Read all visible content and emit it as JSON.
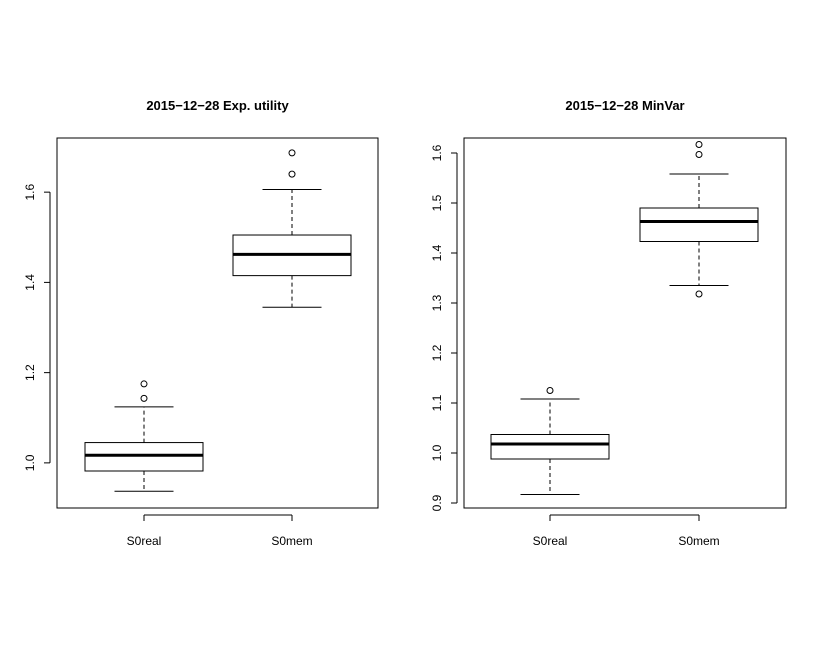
{
  "chart_data": [
    {
      "type": "boxplot",
      "title": "2015−12−28 Exp. utility",
      "xlabel": "",
      "ylabel": "",
      "ylim": [
        0.9,
        1.72
      ],
      "yticks": [
        1.0,
        1.2,
        1.4,
        1.6
      ],
      "ytick_labels": [
        "1.0",
        "1.2",
        "1.4",
        "1.6"
      ],
      "grid": false,
      "categories": [
        "S0real",
        "S0mem"
      ],
      "boxes": [
        {
          "category": "S0real",
          "whisker_low": 0.937,
          "q1": 0.982,
          "median": 1.017,
          "q3": 1.045,
          "whisker_high": 1.124,
          "outliers": [
            1.143,
            1.175
          ]
        },
        {
          "category": "S0mem",
          "whisker_low": 1.345,
          "q1": 1.415,
          "median": 1.462,
          "q3": 1.505,
          "whisker_high": 1.606,
          "outliers": [
            1.64,
            1.687
          ]
        }
      ]
    },
    {
      "type": "boxplot",
      "title": "2015−12−28 MinVar",
      "xlabel": "",
      "ylabel": "",
      "ylim": [
        0.89,
        1.63
      ],
      "yticks": [
        0.9,
        1.0,
        1.1,
        1.2,
        1.3,
        1.4,
        1.5,
        1.6
      ],
      "ytick_labels": [
        "0.9",
        "1.0",
        "1.1",
        "1.2",
        "1.3",
        "1.4",
        "1.5",
        "1.6"
      ],
      "grid": false,
      "categories": [
        "S0real",
        "S0mem"
      ],
      "boxes": [
        {
          "category": "S0real",
          "whisker_low": 0.917,
          "q1": 0.988,
          "median": 1.018,
          "q3": 1.037,
          "whisker_high": 1.108,
          "outliers": [
            1.125
          ]
        },
        {
          "category": "S0mem",
          "whisker_low": 1.335,
          "q1": 1.423,
          "median": 1.463,
          "q3": 1.49,
          "whisker_high": 1.558,
          "outliers": [
            1.318,
            1.597,
            1.617
          ]
        }
      ]
    }
  ]
}
